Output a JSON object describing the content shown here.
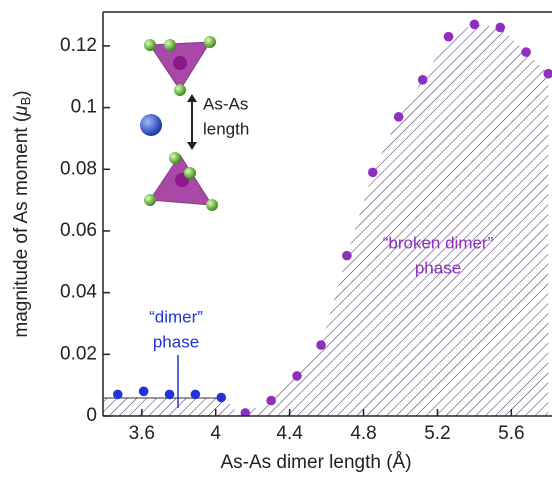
{
  "chart_data": {
    "type": "scatter",
    "xlabel": "As-As dimer length (Å)",
    "ylabel": {
      "text": "magnitude of As moment (",
      "symbol": "μ",
      "subscript": "B",
      "close": ")"
    },
    "xlim": [
      3.39,
      5.82
    ],
    "xticks": [
      3.6,
      4,
      4.4,
      4.8,
      5.2,
      5.6
    ],
    "ylim": [
      0,
      0.131
    ],
    "yticks": [
      0,
      0.02,
      0.04,
      0.06,
      0.08,
      0.1,
      0.12
    ],
    "series": [
      {
        "color": "#1f34d6",
        "x": [
          3.47,
          3.61,
          3.75,
          3.89,
          4.03
        ],
        "values": [
          0.007,
          0.008,
          0.007,
          0.007,
          0.006
        ]
      },
      {
        "color": "#8e2fc0",
        "x": [
          4.16,
          4.3,
          4.44,
          4.57,
          4.71,
          4.85,
          4.99,
          5.12,
          5.26,
          5.4,
          5.54,
          5.68,
          5.8
        ],
        "values": [
          0.001,
          0.005,
          0.013,
          0.023,
          0.052,
          0.079,
          0.097,
          0.109,
          0.123,
          0.127,
          0.126,
          0.118,
          0.111
        ]
      }
    ],
    "annotations": {
      "dimer": [
        "“dimer”",
        "phase"
      ],
      "broken": [
        "“broken dimer”",
        "phase"
      ],
      "inset": [
        "As-As",
        "length"
      ]
    }
  }
}
